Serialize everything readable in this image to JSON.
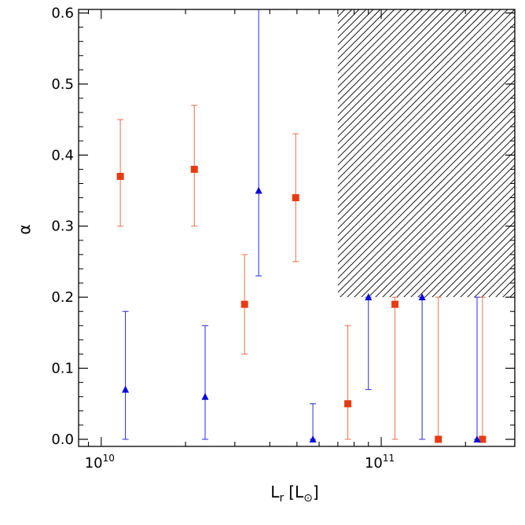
{
  "chart_data": {
    "type": "scatter",
    "title": "",
    "xlabel_main": "L",
    "xlabel_sub": "r",
    "xlabel_unit_open": "[L",
    "xlabel_unit_sym": "⊙",
    "xlabel_unit_close": "]",
    "ylabel": "α",
    "x_scale": "log",
    "xlim": [
      8300000000.0,
      300000000000.0
    ],
    "ylim": [
      -0.01,
      0.605
    ],
    "x_ticks": [
      {
        "value": 10000000000.0,
        "base": "10",
        "exp": "10"
      },
      {
        "value": 100000000000.0,
        "base": "10",
        "exp": "11"
      }
    ],
    "y_ticks": [
      {
        "value": 0.0,
        "label": "0.0"
      },
      {
        "value": 0.1,
        "label": "0.1"
      },
      {
        "value": 0.2,
        "label": "0.2"
      },
      {
        "value": 0.3,
        "label": "0.3"
      },
      {
        "value": 0.4,
        "label": "0.4"
      },
      {
        "value": 0.5,
        "label": "0.5"
      },
      {
        "value": 0.6,
        "label": "0.6"
      }
    ],
    "grid": false,
    "hatched_region": {
      "x_min": 70000000000.0,
      "x_max": 300000000000.0,
      "y_min": 0.2,
      "y_max": 0.605
    },
    "series": [
      {
        "marker": "square",
        "color": "#e63b12",
        "errorbar_color": "#e8704a",
        "points": [
          {
            "x": 11700000000.0,
            "y": 0.37,
            "y_lo": 0.3,
            "y_hi": 0.45
          },
          {
            "x": 21500000000.0,
            "y": 0.38,
            "y_lo": 0.3,
            "y_hi": 0.47
          },
          {
            "x": 32500000000.0,
            "y": 0.19,
            "y_lo": 0.12,
            "y_hi": 0.26
          },
          {
            "x": 49500000000.0,
            "y": 0.34,
            "y_lo": 0.25,
            "y_hi": 0.43
          },
          {
            "x": 76000000000.0,
            "y": 0.05,
            "y_lo": 0.0,
            "y_hi": 0.16
          },
          {
            "x": 112000000000.0,
            "y": 0.19,
            "y_lo": 0.0,
            "y_hi": 0.2
          },
          {
            "x": 160000000000.0,
            "y": 0.0,
            "y_lo": 0.0,
            "y_hi": 0.2
          },
          {
            "x": 230000000000.0,
            "y": 0.0,
            "y_lo": 0.0,
            "y_hi": 0.2
          }
        ]
      },
      {
        "marker": "triangle",
        "color": "#0a0adc",
        "errorbar_color": "#2a2ae0",
        "points": [
          {
            "x": 12200000000.0,
            "y": 0.07,
            "y_lo": 0.0,
            "y_hi": 0.18
          },
          {
            "x": 23500000000.0,
            "y": 0.06,
            "y_lo": 0.0,
            "y_hi": 0.16
          },
          {
            "x": 36500000000.0,
            "y": 0.35,
            "y_lo": 0.23,
            "y_hi": 0.605
          },
          {
            "x": 57000000000.0,
            "y": 0.0,
            "y_lo": 0.0,
            "y_hi": 0.05
          },
          {
            "x": 90000000000.0,
            "y": 0.2,
            "y_lo": 0.07,
            "y_hi": 0.2
          },
          {
            "x": 140000000000.0,
            "y": 0.2,
            "y_lo": 0.0,
            "y_hi": 0.2
          },
          {
            "x": 220000000000.0,
            "y": 0.0,
            "y_lo": 0.0,
            "y_hi": 0.2
          }
        ]
      }
    ]
  }
}
